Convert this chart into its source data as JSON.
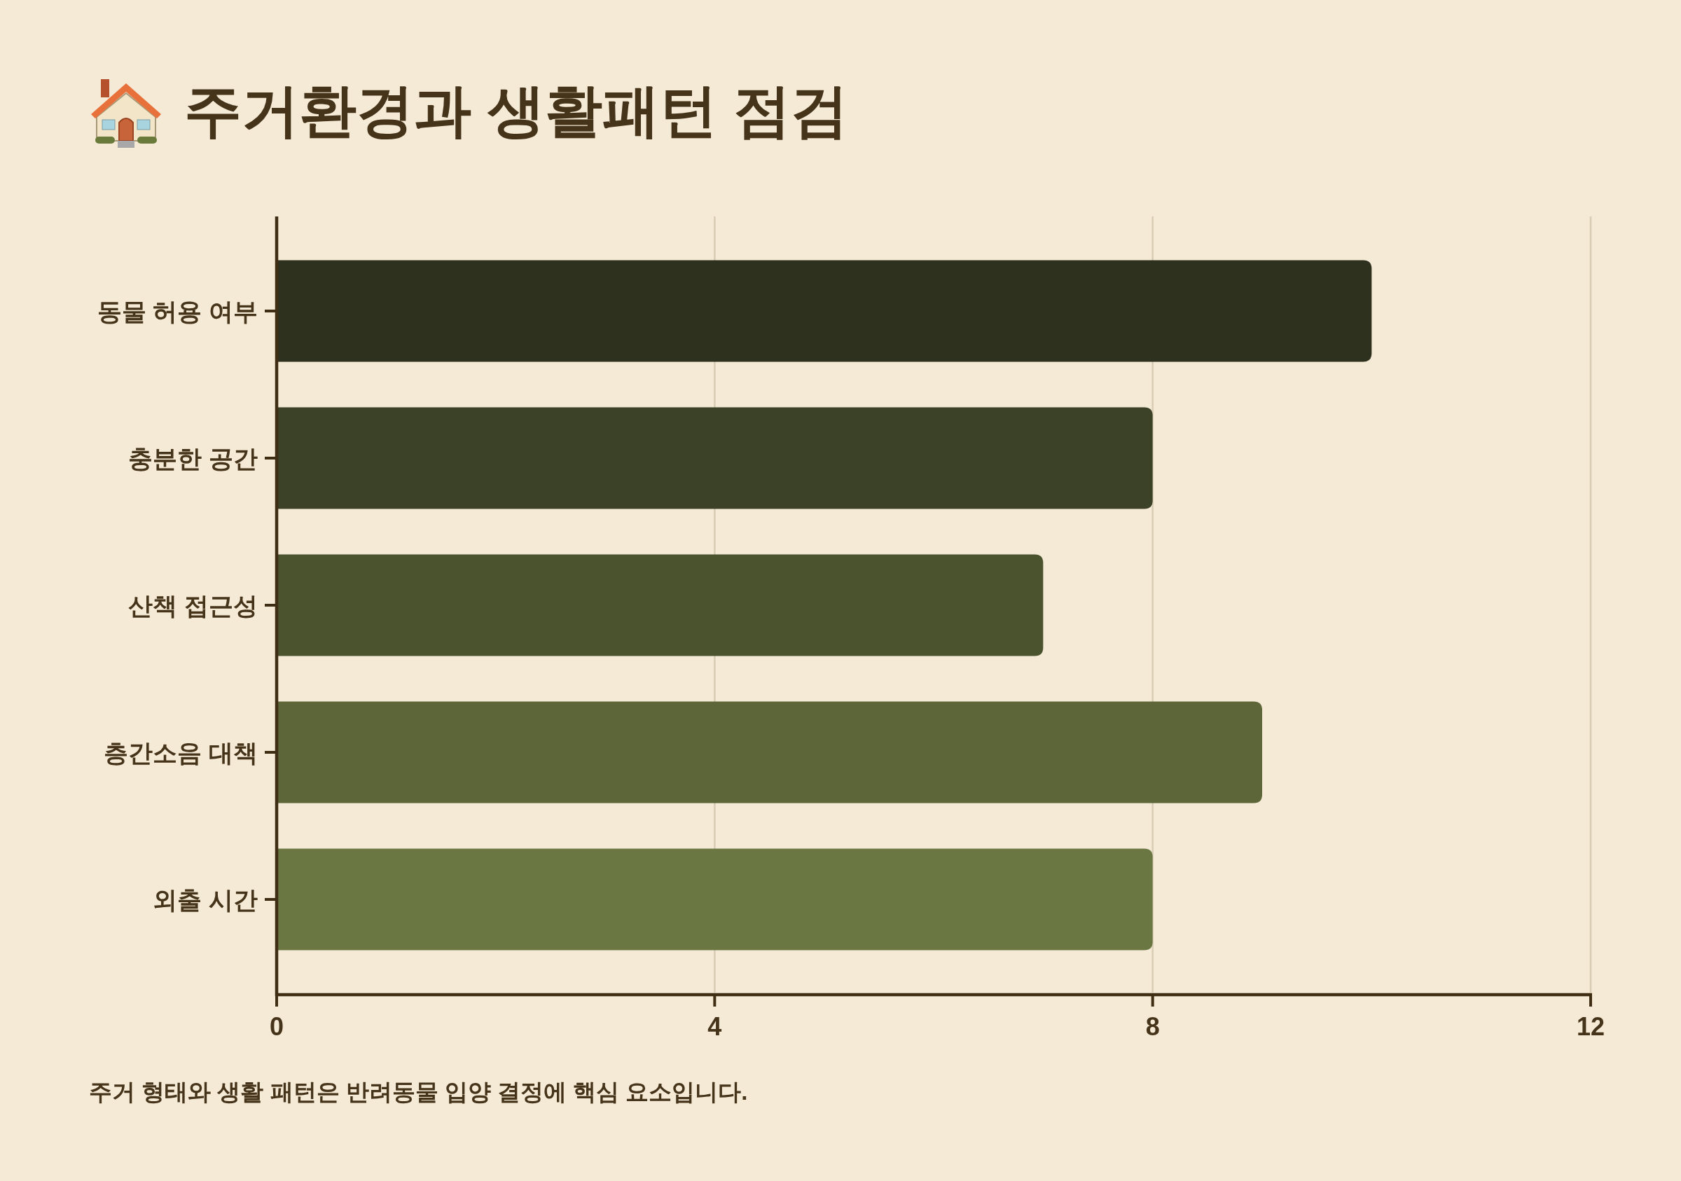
{
  "chart_data": {
    "type": "bar",
    "orientation": "horizontal",
    "title": "주거환경과 생활패턴 점검",
    "categories": [
      "동물 허용 여부",
      "충분한 공간",
      "산책 접근성",
      "층간소음 대책",
      "외출 시간"
    ],
    "values": [
      10,
      8,
      7,
      9,
      8
    ],
    "colors": [
      "#2e311d",
      "#3c4228",
      "#4b532e",
      "#5c6638",
      "#6b7742"
    ],
    "xlim": [
      0,
      12
    ],
    "xticks": [
      0,
      4,
      8,
      12
    ],
    "grid": "x",
    "annotations": [
      "주거 형태와 생활 패턴은 반려동물 입양 결정에 핵심 요소입니다."
    ]
  }
}
